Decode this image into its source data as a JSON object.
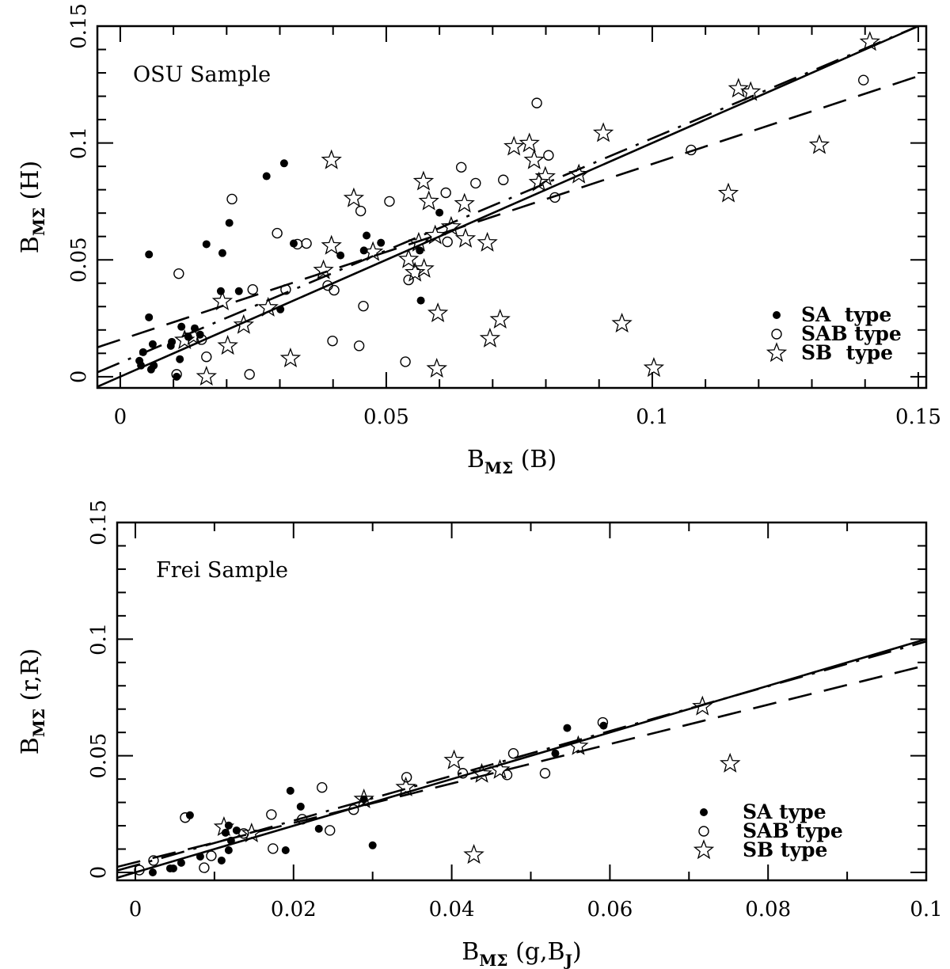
{
  "chart_data": [
    {
      "type": "scatter",
      "annotation": "OSU Sample",
      "xlabel": {
        "main": "B",
        "sub": "MΣ",
        "rest": " (B)"
      },
      "ylabel": {
        "main": "B",
        "sub": "MΣ",
        "rest": " (H)"
      },
      "xlim": [
        -0.0043,
        0.1515
      ],
      "ylim": [
        -0.0048,
        0.15
      ],
      "x_major_ticks": [
        0,
        0.05,
        0.1,
        0.15
      ],
      "x_tick_labels": [
        "0",
        "0.05",
        "0.1",
        "0.15"
      ],
      "y_major_ticks": [
        0,
        0.05,
        0.1,
        0.15
      ],
      "y_tick_labels": [
        "0",
        "0.05",
        "0.1",
        "0.15"
      ],
      "minor_step": 0.01,
      "legend_position": "bottom-right",
      "legend": [
        "SA  type",
        "SAB type",
        "SB  type"
      ],
      "series": [
        {
          "name": "SA type",
          "marker": "filled-circle",
          "points": [
            [
              0.0054,
              0.0523
            ],
            [
              0.0308,
              0.0913
            ],
            [
              0.0275,
              0.0858
            ],
            [
              0.0205,
              0.0658
            ],
            [
              0.0162,
              0.0567
            ],
            [
              0.0192,
              0.0529
            ],
            [
              0.0326,
              0.057
            ],
            [
              0.0463,
              0.0604
            ],
            [
              0.049,
              0.0573
            ],
            [
              0.0414,
              0.0519
            ],
            [
              0.0458,
              0.054
            ],
            [
              0.0189,
              0.0366
            ],
            [
              0.0223,
              0.0366
            ],
            [
              0.0301,
              0.0288
            ],
            [
              0.0054,
              0.0254
            ],
            [
              0.0115,
              0.0214
            ],
            [
              0.014,
              0.0207
            ],
            [
              0.0128,
              0.017
            ],
            [
              0.015,
              0.018
            ],
            [
              0.0061,
              0.0139
            ],
            [
              0.0097,
              0.0149
            ],
            [
              0.0095,
              0.0132
            ],
            [
              0.0043,
              0.0105
            ],
            [
              0.0112,
              0.0075
            ],
            [
              0.0036,
              0.0068
            ],
            [
              0.0039,
              0.0048
            ],
            [
              0.0063,
              0.0048
            ],
            [
              0.0058,
              0.0031
            ],
            [
              0.0106,
              0.0
            ],
            [
              0.06,
              0.0702
            ],
            [
              0.0563,
              0.054
            ],
            [
              0.0565,
              0.0326
            ]
          ]
        },
        {
          "name": "SAB type",
          "marker": "open-circle",
          "points": [
            [
              0.021,
              0.076
            ],
            [
              0.011,
              0.0441
            ],
            [
              0.0295,
              0.0614
            ],
            [
              0.0333,
              0.0567
            ],
            [
              0.035,
              0.057
            ],
            [
              0.0506,
              0.075
            ],
            [
              0.0452,
              0.0709
            ],
            [
              0.0249,
              0.0373
            ],
            [
              0.0311,
              0.0373
            ],
            [
              0.039,
              0.039
            ],
            [
              0.0402,
              0.037
            ],
            [
              0.0457,
              0.0302
            ],
            [
              0.0399,
              0.0153
            ],
            [
              0.0449,
              0.0132
            ],
            [
              0.0536,
              0.0064
            ],
            [
              0.0162,
              0.0085
            ],
            [
              0.0243,
              0.001
            ],
            [
              0.0106,
              0.001
            ],
            [
              0.0153,
              0.0159
            ],
            [
              0.0641,
              0.0896
            ],
            [
              0.0668,
              0.0828
            ],
            [
              0.072,
              0.0842
            ],
            [
              0.0612,
              0.0787
            ],
            [
              0.0805,
              0.0947
            ],
            [
              0.0817,
              0.0767
            ],
            [
              0.0615,
              0.0577
            ],
            [
              0.0542,
              0.0414
            ],
            [
              0.0783,
              0.1171
            ],
            [
              0.1397,
              0.1269
            ],
            [
              0.1073,
              0.097
            ]
          ]
        },
        {
          "name": "SB type",
          "marker": "open-star",
          "points": [
            [
              0.0397,
              0.0926
            ],
            [
              0.0439,
              0.0763
            ],
            [
              0.0397,
              0.056
            ],
            [
              0.0382,
              0.0455
            ],
            [
              0.0475,
              0.0533
            ],
            [
              0.0542,
              0.0502
            ],
            [
              0.0192,
              0.0322
            ],
            [
              0.0278,
              0.0295
            ],
            [
              0.0232,
              0.0221
            ],
            [
              0.0121,
              0.0156
            ],
            [
              0.0138,
              0.0173
            ],
            [
              0.0202,
              0.0132
            ],
            [
              0.032,
              0.0078
            ],
            [
              0.0162,
              0.0
            ],
            [
              0.057,
              0.0835
            ],
            [
              0.058,
              0.075
            ],
            [
              0.0647,
              0.074
            ],
            [
              0.0908,
              0.1042
            ],
            [
              0.074,
              0.0984
            ],
            [
              0.0769,
              0.0998
            ],
            [
              0.0778,
              0.0926
            ],
            [
              0.0787,
              0.0831
            ],
            [
              0.0799,
              0.0855
            ],
            [
              0.0862,
              0.0865
            ],
            [
              0.0622,
              0.0641
            ],
            [
              0.0592,
              0.0604
            ],
            [
              0.0649,
              0.059
            ],
            [
              0.069,
              0.0573
            ],
            [
              0.0561,
              0.0573
            ],
            [
              0.0554,
              0.0445
            ],
            [
              0.0571,
              0.0461
            ],
            [
              0.0597,
              0.0271
            ],
            [
              0.0714,
              0.0244
            ],
            [
              0.0695,
              0.0163
            ],
            [
              0.0595,
              0.0034
            ],
            [
              0.0943,
              0.0227
            ],
            [
              0.1409,
              0.1432
            ],
            [
              0.1162,
              0.1232
            ],
            [
              0.1185,
              0.1218
            ],
            [
              0.1314,
              0.0991
            ],
            [
              0.1143,
              0.0784
            ],
            [
              0.1003,
              0.0037
            ]
          ]
        }
      ],
      "lines": [
        {
          "name": "solid fit",
          "style": "solid",
          "slope": 1.0,
          "intercept": 0.0
        },
        {
          "name": "dashed fit",
          "style": "dashed",
          "slope": 0.752,
          "intercept": 0.0158
        },
        {
          "name": "dash-dot fit",
          "style": "dashdot",
          "slope": 0.96,
          "intercept": 0.006
        }
      ]
    },
    {
      "type": "scatter",
      "annotation": "Frei Sample",
      "xlabel": {
        "main": "B",
        "sub": "MΣ",
        "rest": " (g,B",
        "sub2": "J",
        "rest2": ")"
      },
      "ylabel": {
        "main": "B",
        "sub": "MΣ",
        "rest": " (r,R)"
      },
      "xlim": [
        -0.0023,
        0.1
      ],
      "ylim": [
        -0.0034,
        0.15
      ],
      "x_major_ticks": [
        0,
        0.02,
        0.04,
        0.06,
        0.08,
        0.1
      ],
      "x_tick_labels": [
        "0",
        "0.02",
        "0.04",
        "0.06",
        "0.08",
        "0.1"
      ],
      "y_major_ticks": [
        0,
        0.05,
        0.1,
        0.15
      ],
      "y_tick_labels": [
        "0",
        "0.05",
        "0.1",
        "0.15"
      ],
      "minor_step": 0.01,
      "legend_position": "bottom-right",
      "legend": [
        "SA type",
        "SAB type",
        "SB type"
      ],
      "series": [
        {
          "name": "SA type",
          "marker": "filled-circle",
          "points": [
            [
              0.0069,
              0.0245
            ],
            [
              0.0118,
              0.0201
            ],
            [
              0.0114,
              0.017
            ],
            [
              0.0128,
              0.018
            ],
            [
              0.0121,
              0.0136
            ],
            [
              0.0118,
              0.0095
            ],
            [
              0.0109,
              0.0051
            ],
            [
              0.0082,
              0.0068
            ],
            [
              0.0058,
              0.0041
            ],
            [
              0.0044,
              0.0017
            ],
            [
              0.0048,
              0.0017
            ],
            [
              0.0022,
              0.0
            ],
            [
              0.0196,
              0.035
            ],
            [
              0.0209,
              0.0282
            ],
            [
              0.0232,
              0.0187
            ],
            [
              0.019,
              0.0095
            ],
            [
              0.03,
              0.0116
            ],
            [
              0.0289,
              0.0313
            ],
            [
              0.0546,
              0.0619
            ],
            [
              0.0592,
              0.0629
            ],
            [
              0.0531,
              0.051
            ]
          ]
        },
        {
          "name": "SAB type",
          "marker": "open-circle",
          "points": [
            [
              0.0063,
              0.0235
            ],
            [
              0.0023,
              0.0051
            ],
            [
              0.0005,
              0.001
            ],
            [
              0.0096,
              0.0071
            ],
            [
              0.0087,
              0.002
            ],
            [
              0.0137,
              0.0167
            ],
            [
              0.0172,
              0.0248
            ],
            [
              0.0211,
              0.0228
            ],
            [
              0.0236,
              0.0364
            ],
            [
              0.0246,
              0.018
            ],
            [
              0.0174,
              0.0102
            ],
            [
              0.0276,
              0.0269
            ],
            [
              0.0343,
              0.0408
            ],
            [
              0.0414,
              0.0425
            ],
            [
              0.0478,
              0.051
            ],
            [
              0.047,
              0.0418
            ],
            [
              0.0518,
              0.0425
            ],
            [
              0.0591,
              0.0643
            ]
          ]
        },
        {
          "name": "SB type",
          "marker": "open-star",
          "points": [
            [
              0.0112,
              0.0194
            ],
            [
              0.0147,
              0.0167
            ],
            [
              0.0289,
              0.0313
            ],
            [
              0.0342,
              0.0364
            ],
            [
              0.0403,
              0.048
            ],
            [
              0.0438,
              0.0422
            ],
            [
              0.0461,
              0.0439
            ],
            [
              0.056,
              0.0541
            ],
            [
              0.0717,
              0.0711
            ],
            [
              0.0752,
              0.0466
            ],
            [
              0.0428,
              0.0075
            ]
          ]
        }
      ],
      "lines": [
        {
          "name": "solid fit",
          "style": "solid",
          "slope": 1.0,
          "intercept": 0.0
        },
        {
          "name": "dashed fit",
          "style": "dashed",
          "slope": 0.845,
          "intercept": 0.0043
        },
        {
          "name": "dash-dot fit",
          "style": "dashdot",
          "slope": 0.96,
          "intercept": 0.003
        }
      ]
    }
  ]
}
